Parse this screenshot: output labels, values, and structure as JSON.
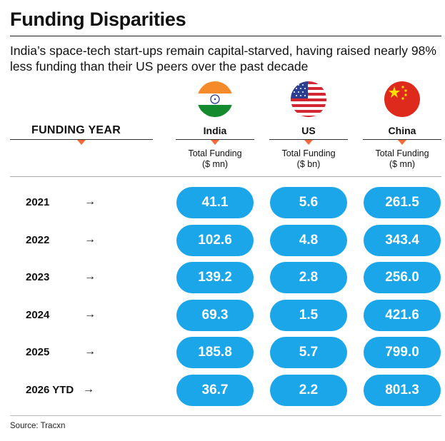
{
  "title": "Funding Disparities",
  "subtitle": "India’s space-tech start-ups remain capital-starved, having raised nearly 98% less funding than their US peers over the past decade",
  "year_header": "FUNDING YEAR",
  "arrow_glyph": "→",
  "source": "Source: Tracxn",
  "colors": {
    "pill": "#1aa6e8",
    "accent": "#f26b3a"
  },
  "chart_data": {
    "type": "table",
    "columns": [
      {
        "name": "India",
        "unit_label": "Total Funding ($ mn)",
        "unit_line1": "Total Funding",
        "unit_line2": "($ mn)",
        "flag": "india-flag-icon"
      },
      {
        "name": "US",
        "unit_label": "Total Funding ($ bn)",
        "unit_line1": "Total Funding",
        "unit_line2": "($ bn)",
        "flag": "us-flag-icon"
      },
      {
        "name": "China",
        "unit_label": "Total Funding ($ mn)",
        "unit_line1": "Total Funding",
        "unit_line2": "($ mn)",
        "flag": "china-flag-icon"
      }
    ],
    "rows": [
      {
        "year": "2021",
        "values": [
          "41.1",
          "5.6",
          "261.5"
        ]
      },
      {
        "year": "2022",
        "values": [
          "102.6",
          "4.8",
          "343.4"
        ]
      },
      {
        "year": "2023",
        "values": [
          "139.2",
          "2.8",
          "256.0"
        ]
      },
      {
        "year": "2024",
        "values": [
          "69.3",
          "1.5",
          "421.6"
        ]
      },
      {
        "year": "2025",
        "values": [
          "185.8",
          "5.7",
          "799.0"
        ]
      },
      {
        "year": "2026 YTD",
        "values": [
          "36.7",
          "2.2",
          "801.3"
        ]
      }
    ]
  }
}
